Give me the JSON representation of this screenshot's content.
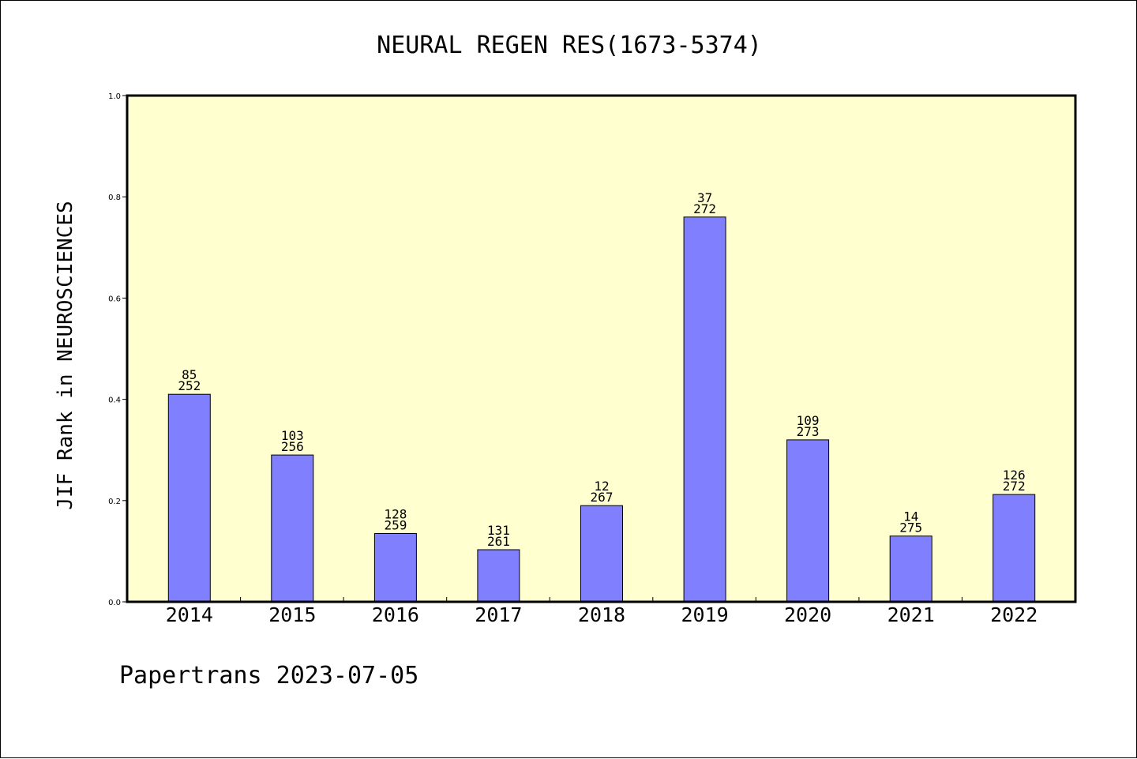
{
  "chart_data": {
    "type": "bar",
    "title": "NEURAL REGEN RES(1673-5374)",
    "ylabel": "JIF Rank in NEUROSCIENCES",
    "xlabel": "",
    "ylim": [
      0,
      1.0
    ],
    "yticks": [
      "0.0",
      "0.2",
      "0.4",
      "0.6",
      "0.8",
      "1.0"
    ],
    "categories": [
      "2014",
      "2015",
      "2016",
      "2017",
      "2018",
      "2019",
      "2020",
      "2021",
      "2022"
    ],
    "values": [
      0.41,
      0.29,
      0.135,
      0.103,
      0.19,
      0.76,
      0.32,
      0.13,
      0.212
    ],
    "labels": [
      [
        "85",
        "252"
      ],
      [
        "103",
        "256"
      ],
      [
        "128",
        "259"
      ],
      [
        "131",
        "261"
      ],
      [
        "12",
        "267"
      ],
      [
        "37",
        "272"
      ],
      [
        "109",
        "273"
      ],
      [
        "14",
        "275"
      ],
      [
        "126",
        "272"
      ]
    ],
    "plot_background": "#ffffd0",
    "bar_color": "#8080ff",
    "grid": false
  },
  "footer": "Papertrans 2023-07-05"
}
